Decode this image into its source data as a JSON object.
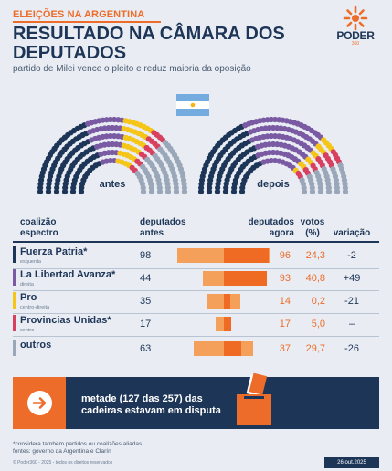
{
  "header": {
    "kicker": "ELEIÇÕES NA ARGENTINA",
    "title": "RESULTADO NA CÂMARA DOS DEPUTADOS",
    "subtitle": "partido de Milei vence o pleito e reduz maioria da oposição"
  },
  "logo": {
    "name": "PODER",
    "sub": "360"
  },
  "hemicycles": {
    "before_label": "antes",
    "after_label": "depois"
  },
  "table": {
    "headers": {
      "coalition": "coalizão",
      "spectrum": "espectro",
      "seats_before": "deputados",
      "seats_before_sub": "antes",
      "seats_after": "deputados",
      "seats_after_sub": "agora",
      "votes": "votos",
      "votes_sub": "(%)",
      "change": "variação"
    }
  },
  "chart_data": {
    "type": "table",
    "total_seats": 257,
    "rows": [
      {
        "name": "Fuerza Patria*",
        "spectrum": "esquerda",
        "color": "#1d3557",
        "before": 98,
        "after": 96,
        "votes": "24,3",
        "change": "-2"
      },
      {
        "name": "La Libertad Avanza*",
        "spectrum": "direita",
        "color": "#7a5aa3",
        "before": 44,
        "after": 93,
        "votes": "40,8",
        "change": "+49"
      },
      {
        "name": "Pro",
        "spectrum": "centro-direita",
        "color": "#f5c518",
        "before": 35,
        "after": 14,
        "votes": "0,2",
        "change": "-21"
      },
      {
        "name": "Provincias Unidas*",
        "spectrum": "centro",
        "color": "#d94060",
        "before": 17,
        "after": 17,
        "votes": "5,0",
        "change": "–"
      },
      {
        "name": "outros",
        "spectrum": "",
        "color": "#9aa7b8",
        "before": 63,
        "after": 37,
        "votes": "29,7",
        "change": "-26"
      }
    ]
  },
  "callout": {
    "text": "metade (127 das 257) das cadeiras estavam em disputa"
  },
  "footnote": {
    "line1": "*considera também partidos ou coalizões aliadas",
    "line2": "fontes: governo da Argentina e Clarín",
    "credit": "© Poder360 - 2025 - todos os direitos reservados",
    "date": "26.out.2025"
  }
}
